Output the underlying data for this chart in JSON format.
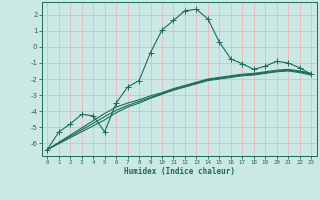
{
  "xlabel": "Humidex (Indice chaleur)",
  "bg_color": "#cce8e4",
  "line_color": "#1a6b5a",
  "grid_color": "#e8b8b8",
  "xlim": [
    -0.5,
    23.5
  ],
  "ylim": [
    -6.8,
    2.8
  ],
  "yticks": [
    2,
    1,
    0,
    -1,
    -2,
    -3,
    -4,
    -5,
    -6
  ],
  "xticks": [
    0,
    1,
    2,
    3,
    4,
    5,
    6,
    7,
    8,
    9,
    10,
    11,
    12,
    13,
    14,
    15,
    16,
    17,
    18,
    19,
    20,
    21,
    22,
    23
  ],
  "curve1_x": [
    0,
    1,
    2,
    3,
    4,
    5,
    6,
    7,
    8,
    9,
    10,
    11,
    12,
    13,
    14,
    15,
    16,
    17,
    18,
    19,
    20,
    21,
    22,
    23
  ],
  "curve1_y": [
    -6.4,
    -5.3,
    -4.8,
    -4.2,
    -4.3,
    -5.3,
    -3.5,
    -2.5,
    -2.1,
    -0.35,
    1.05,
    1.65,
    2.25,
    2.35,
    1.75,
    0.3,
    -0.75,
    -1.05,
    -1.4,
    -1.2,
    -0.9,
    -1.0,
    -1.3,
    -1.7
  ],
  "curve2_x": [
    0,
    5,
    6,
    7,
    8,
    9,
    10,
    11,
    12,
    13,
    14,
    15,
    16,
    17,
    18,
    19,
    20,
    21,
    22,
    23
  ],
  "curve2_y": [
    -6.4,
    -4.55,
    -4.1,
    -3.75,
    -3.5,
    -3.2,
    -2.95,
    -2.7,
    -2.5,
    -2.3,
    -2.1,
    -2.0,
    -1.9,
    -1.8,
    -1.75,
    -1.65,
    -1.55,
    -1.5,
    -1.6,
    -1.75
  ],
  "curve3_x": [
    0,
    5,
    6,
    7,
    8,
    9,
    10,
    11,
    12,
    13,
    14,
    15,
    16,
    17,
    18,
    19,
    20,
    21,
    22,
    23
  ],
  "curve3_y": [
    -6.4,
    -4.35,
    -3.95,
    -3.65,
    -3.4,
    -3.15,
    -2.9,
    -2.65,
    -2.45,
    -2.25,
    -2.05,
    -1.95,
    -1.85,
    -1.75,
    -1.7,
    -1.6,
    -1.5,
    -1.45,
    -1.55,
    -1.7
  ],
  "curve4_x": [
    0,
    5,
    6,
    7,
    8,
    9,
    10,
    11,
    12,
    13,
    14,
    15,
    16,
    17,
    18,
    19,
    20,
    21,
    22,
    23
  ],
  "curve4_y": [
    -6.4,
    -4.15,
    -3.75,
    -3.5,
    -3.3,
    -3.05,
    -2.85,
    -2.6,
    -2.4,
    -2.2,
    -2.0,
    -1.9,
    -1.8,
    -1.7,
    -1.65,
    -1.55,
    -1.45,
    -1.4,
    -1.5,
    -1.65
  ]
}
